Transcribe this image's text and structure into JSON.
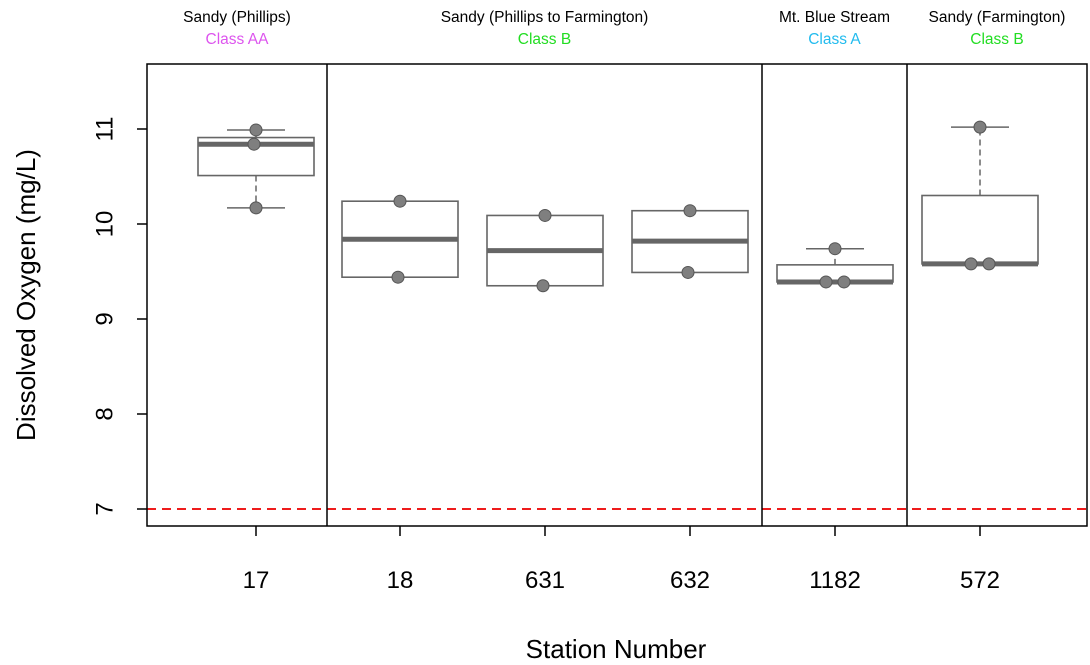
{
  "chart_data": {
    "type": "box",
    "xlabel": "Station Number",
    "ylabel": "Dissolved Oxygen (mg/L)",
    "ylim": [
      6.85,
      11.68
    ],
    "yticks": [
      7,
      8,
      9,
      10,
      11
    ],
    "threshold": {
      "value": 7,
      "color": "#ee1c1c",
      "style": "dashed"
    },
    "segments": [
      {
        "name": "Sandy (Phillips)",
        "class": "Class AA",
        "class_color": "#dd55ee",
        "stations": [
          "17"
        ]
      },
      {
        "name": "Sandy (Phillips to Farmington)",
        "class": "Class B",
        "class_color": "#22dd22",
        "stations": [
          "18",
          "631",
          "632"
        ]
      },
      {
        "name": "Mt. Blue Stream",
        "class": "Class A",
        "class_color": "#22bbee",
        "stations": [
          "1182"
        ]
      },
      {
        "name": "Sandy (Farmington)",
        "class": "Class B",
        "class_color": "#22dd22",
        "stations": [
          "572"
        ]
      }
    ],
    "boxes": [
      {
        "station": "17",
        "min": 10.17,
        "q1": 10.51,
        "median": 10.84,
        "q3": 10.91,
        "max": 10.99,
        "points": [
          10.99,
          10.84,
          10.17
        ]
      },
      {
        "station": "18",
        "min": 9.44,
        "q1": 9.44,
        "median": 9.84,
        "q3": 10.24,
        "max": 10.24,
        "points": [
          10.24,
          9.44
        ]
      },
      {
        "station": "631",
        "min": 9.35,
        "q1": 9.35,
        "median": 9.72,
        "q3": 10.09,
        "max": 10.09,
        "points": [
          10.09,
          9.35
        ]
      },
      {
        "station": "632",
        "min": 9.49,
        "q1": 9.49,
        "median": 9.82,
        "q3": 10.14,
        "max": 10.14,
        "points": [
          10.14,
          9.49
        ]
      },
      {
        "station": "1182",
        "min": 9.39,
        "q1": 9.39,
        "median": 9.39,
        "q3": 9.57,
        "max": 9.74,
        "points": [
          9.74,
          9.39,
          9.39
        ]
      },
      {
        "station": "572",
        "min": 9.58,
        "q1": 9.58,
        "median": 9.58,
        "q3": 10.3,
        "max": 11.02,
        "points": [
          11.02,
          9.58,
          9.58
        ]
      }
    ]
  }
}
